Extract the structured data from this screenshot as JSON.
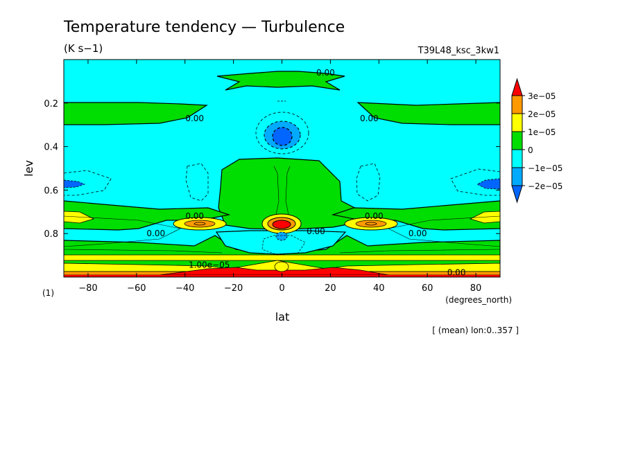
{
  "chart_data": {
    "type": "heatmap",
    "title": "Temperature tendency — Turbulence",
    "units": "(K s−1)",
    "run_label": "T39L48_ksc_3kw1",
    "footer": "[ (mean) lon:0..357 ]",
    "xlabel": "lat",
    "x_units": "(degrees_north)",
    "ylabel": "lev",
    "y_units": "(1)",
    "xlim": [
      -90,
      90
    ],
    "ylim": [
      1.0,
      0.0
    ],
    "x_ticks": [
      -80,
      -60,
      -40,
      -20,
      0,
      20,
      40,
      60,
      80
    ],
    "x_tick_labels": [
      "−80",
      "−60",
      "−40",
      "−20",
      "0",
      "20",
      "40",
      "60",
      "80"
    ],
    "y_ticks": [
      0.2,
      0.4,
      0.6,
      0.8
    ],
    "y_tick_labels": [
      "0.2",
      "0.4",
      "0.6",
      "0.8"
    ],
    "colorbar": {
      "levels": [
        {
          "label": "3e−05",
          "color": "#ff9900"
        },
        {
          "label": "2e−05",
          "color": "#ffff00"
        },
        {
          "label": "1e−05",
          "color": "#00dd00"
        },
        {
          "label": "0",
          "color": "#00ffff"
        },
        {
          "label": "−1e−05",
          "color": "#00aaff"
        },
        {
          "label": "−2e−05",
          "color": ""
        }
      ],
      "top_color": "#ff0000",
      "bottom_color": "#0066ff"
    },
    "contour_labels": [
      {
        "text": "0.00",
        "lat": 18,
        "lev": 0.06
      },
      {
        "text": "0.00",
        "lat": -36,
        "lev": 0.27
      },
      {
        "text": "0.00",
        "lat": 36,
        "lev": 0.27
      },
      {
        "text": "0.00",
        "lat": -36,
        "lev": 0.72
      },
      {
        "text": "0.00",
        "lat": 38,
        "lev": 0.72
      },
      {
        "text": "0.00",
        "lat": -52,
        "lev": 0.8
      },
      {
        "text": "0.00",
        "lat": 14,
        "lev": 0.79
      },
      {
        "text": "0.00",
        "lat": 56,
        "lev": 0.8
      },
      {
        "text": "1.00e−05",
        "lat": -30,
        "lev": 0.945
      },
      {
        "text": "0.00",
        "lat": 72,
        "lev": 0.98
      }
    ],
    "colors": {
      "negative_strong": "#0066ff",
      "negative": "#00aaff",
      "near_zero_negative": "#00ffff",
      "near_zero_positive": "#00dd00",
      "positive": "#ffff00",
      "positive_strong": "#ff9900",
      "max": "#ff0000"
    }
  }
}
